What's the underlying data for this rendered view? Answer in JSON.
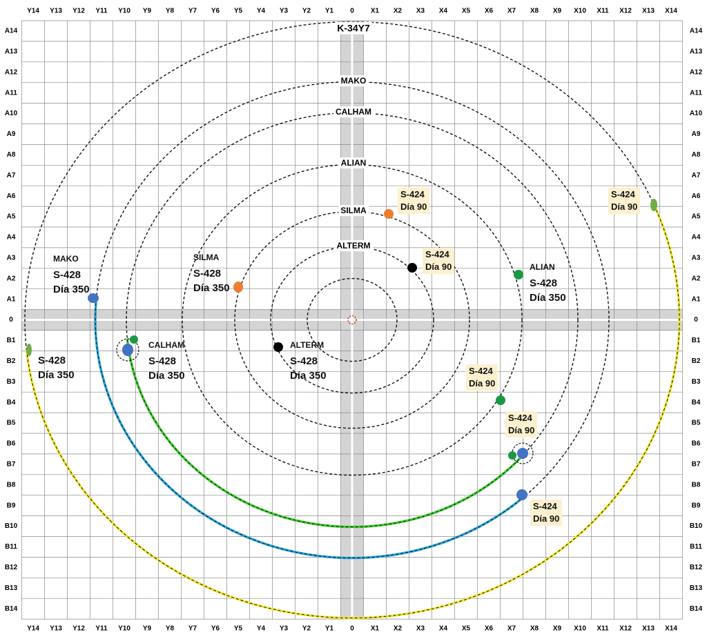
{
  "grid": {
    "columns": [
      "Y14",
      "Y13",
      "Y12",
      "Y11",
      "Y10",
      "Y9",
      "Y8",
      "Y7",
      "Y6",
      "Y5",
      "Y4",
      "Y3",
      "Y2",
      "Y1",
      "0",
      "X1",
      "X2",
      "X3",
      "X4",
      "X5",
      "X6",
      "X7",
      "X8",
      "X9",
      "X10",
      "X11",
      "X12",
      "X13",
      "X14"
    ],
    "rows": [
      "A14",
      "A13",
      "A12",
      "A11",
      "A10",
      "A9",
      "A8",
      "A7",
      "A6",
      "A5",
      "A4",
      "A3",
      "A2",
      "A1",
      "0",
      "B1",
      "B2",
      "B3",
      "B4",
      "B5",
      "B6",
      "B7",
      "B8",
      "B9",
      "B10",
      "B11",
      "B12",
      "B13",
      "B14"
    ]
  },
  "orbits": [
    {
      "name": "K-34Y7"
    },
    {
      "name": "MAKO"
    },
    {
      "name": "CALHAM"
    },
    {
      "name": "ALIAN"
    },
    {
      "name": "SILMA"
    },
    {
      "name": "ALTERM"
    }
  ],
  "annotations": [
    {
      "title": "MAKO",
      "lines": [
        "S-428",
        "Día 350"
      ]
    },
    {
      "title": "SILMA",
      "lines": [
        "S-428",
        "Día 350"
      ]
    },
    {
      "title": "ALTERM",
      "lines": [
        "S-428",
        "Día 350"
      ]
    },
    {
      "title": "CALHAM",
      "lines": [
        "S-428",
        "Día 350"
      ]
    },
    {
      "lines": [
        "S-428",
        "Día 350"
      ]
    },
    {
      "title": "ALIAN",
      "lines": [
        "S-428",
        "Día 350"
      ]
    },
    {
      "lines": [
        "S-424",
        "Día 90"
      ]
    },
    {
      "lines": [
        "S-424",
        "Día 90"
      ]
    },
    {
      "lines": [
        "S-424",
        "Día 90"
      ]
    },
    {
      "lines": [
        "S-424",
        "Día 90"
      ]
    },
    {
      "lines": [
        "S-424",
        "Día 90"
      ]
    },
    {
      "lines": [
        "S-424",
        "Día 90"
      ]
    }
  ]
}
